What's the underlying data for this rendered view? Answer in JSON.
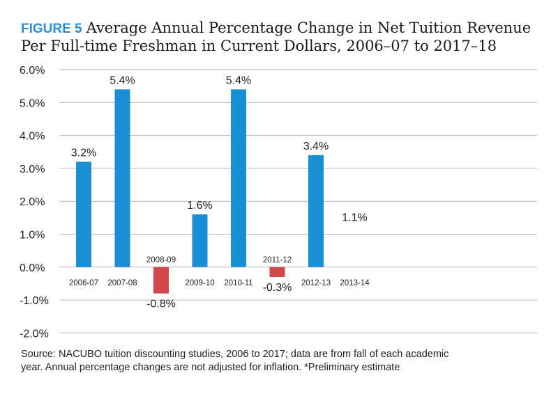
{
  "figure": {
    "label": "FIGURE 5",
    "title_line1": "Average Annual Percentage Change in Net Tuition Revenue",
    "title_line2": "Per Full-time Freshman in Current Dollars, 2006–07 to 2017–18"
  },
  "chart_data": {
    "type": "bar",
    "categories": [
      "2006-07",
      "2007-08",
      "2008-09",
      "2009-10",
      "2010-11",
      "2011-12",
      "2012-13",
      "2013-14"
    ],
    "values": [
      3.2,
      5.4,
      -0.8,
      1.6,
      5.4,
      -0.3,
      3.4,
      1.1
    ],
    "value_labels": [
      "3.2%",
      "5.4%",
      "-0.8%",
      "1.6%",
      "5.4%",
      "-0.3%",
      "3.4%",
      "1.1%"
    ],
    "y_ticks": [
      "6.0%",
      "5.0%",
      "4.0%",
      "3.0%",
      "2.0%",
      "1.0%",
      "0.0%",
      "-1.0%",
      "-2.0%"
    ],
    "y_tick_values": [
      6,
      5,
      4,
      3,
      2,
      1,
      0,
      -1,
      -2
    ],
    "ylim": [
      -2,
      6
    ],
    "grid": true,
    "colors": {
      "positive": "#1a8fd6",
      "negative": "#d1474a"
    }
  },
  "source": {
    "line1": "Source: NACUBO tuition discounting studies, 2006 to 2017; data are from fall of each academic",
    "line2": "year. Annual percentage changes are not adjusted for inflation. *Preliminary estimate"
  }
}
